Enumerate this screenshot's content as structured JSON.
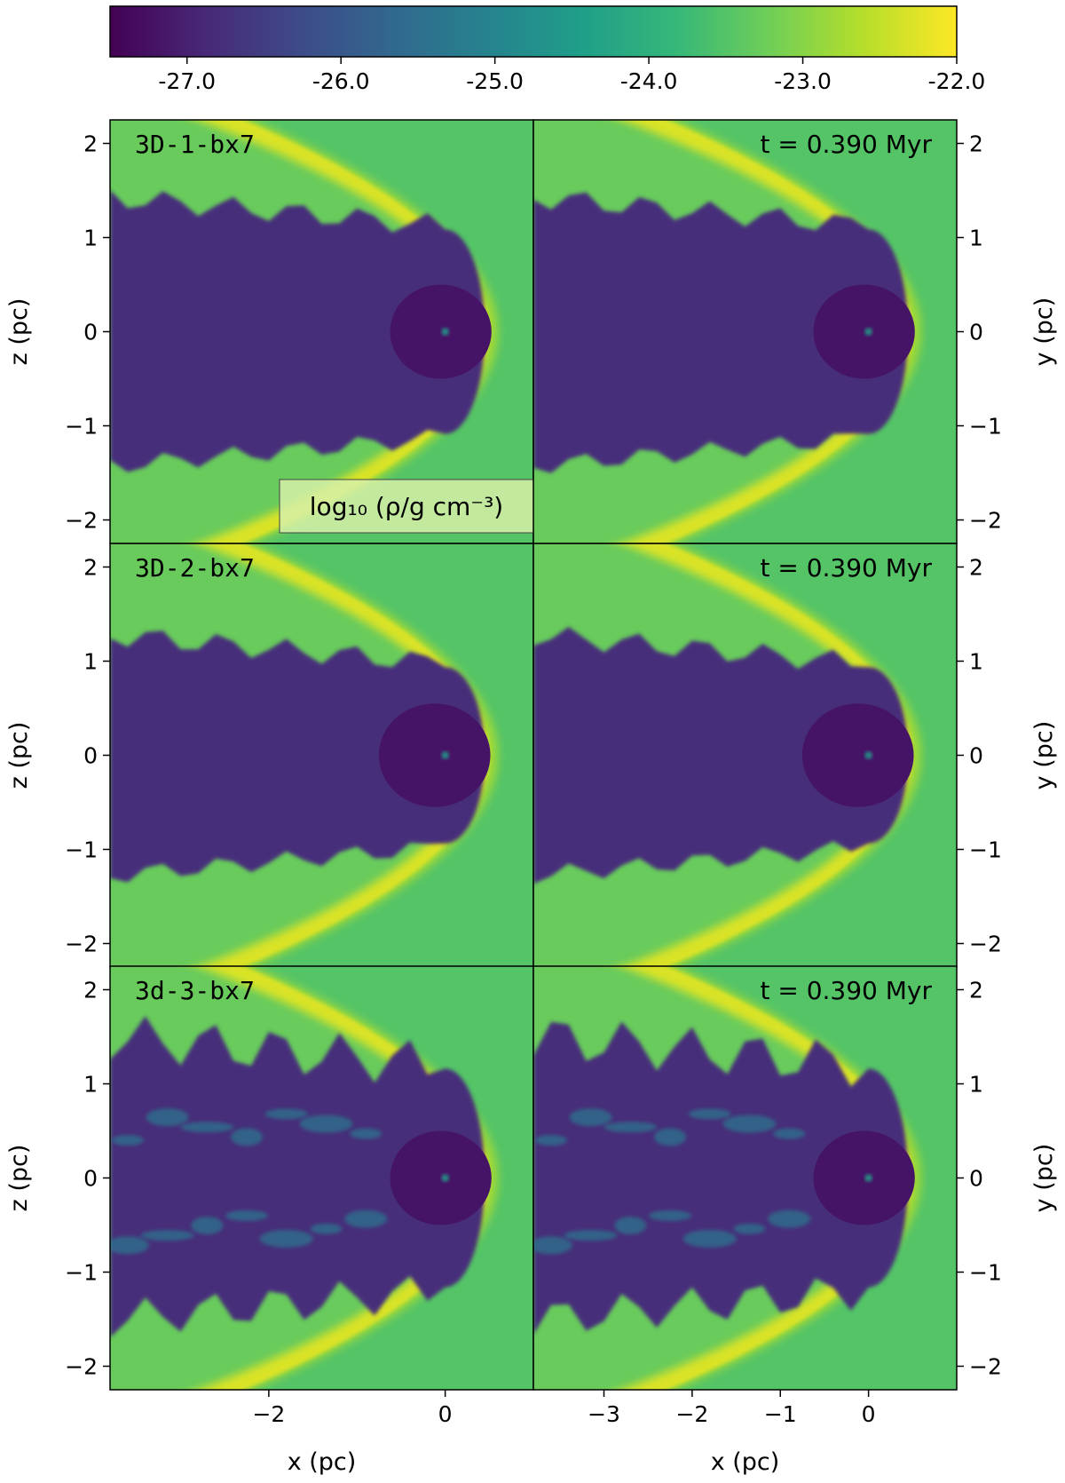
{
  "chart_data": {
    "type": "heatmap",
    "figure": "log-density slices, 3x2 grid",
    "colorbar": {
      "label": "log₁₀ (ρ/g cm⁻³)",
      "vmin": -27.5,
      "vmax": -22.0,
      "ticks": [
        -27.0,
        -26.0,
        -25.0,
        -24.0,
        -23.0,
        -22.0
      ],
      "tick_labels": [
        "-27.0",
        "-26.0",
        "-25.0",
        "-24.0",
        "-23.0",
        "-22.0"
      ],
      "colormap": "viridis",
      "colors": [
        "#440154",
        "#482878",
        "#3e4a89",
        "#31688e",
        "#26828e",
        "#1f9e89",
        "#35b779",
        "#6ece58",
        "#b5de2b",
        "#fde725"
      ]
    },
    "time_label": "t = 0.390 Myr",
    "rows": [
      {
        "label": "3D-1-bx7"
      },
      {
        "label": "3D-2-bx7"
      },
      {
        "label": "3d-3-bx7"
      }
    ],
    "left_axes": {
      "xlabel": "x (pc)",
      "ylabel": "z (pc)",
      "xticks": [
        -2,
        0
      ],
      "xtick_labels": [
        "−2",
        "0"
      ],
      "yticks": [
        2,
        1,
        0,
        -1,
        -2
      ],
      "ytick_labels": [
        "2",
        "1",
        "0",
        "−1",
        "−2"
      ],
      "xlim": [
        -3.8,
        1.0
      ],
      "ylim": [
        -2.25,
        2.25
      ]
    },
    "right_axes": {
      "xlabel": "x (pc)",
      "ylabel": "y (pc)",
      "xticks": [
        -3,
        -2,
        -1,
        0
      ],
      "xtick_labels": [
        "−3",
        "−2",
        "−1",
        "0"
      ],
      "yticks": [
        2,
        1,
        0,
        -1,
        -2
      ],
      "ytick_labels": [
        "2",
        "1",
        "0",
        "−1",
        "−2"
      ],
      "xlim": [
        -3.8,
        1.0
      ],
      "ylim": [
        -2.25,
        2.25
      ]
    },
    "densities": {
      "ambient": -23.5,
      "shell": -22.3,
      "cavity": -26.8,
      "bubble": -27.2,
      "source": -24.5
    }
  }
}
